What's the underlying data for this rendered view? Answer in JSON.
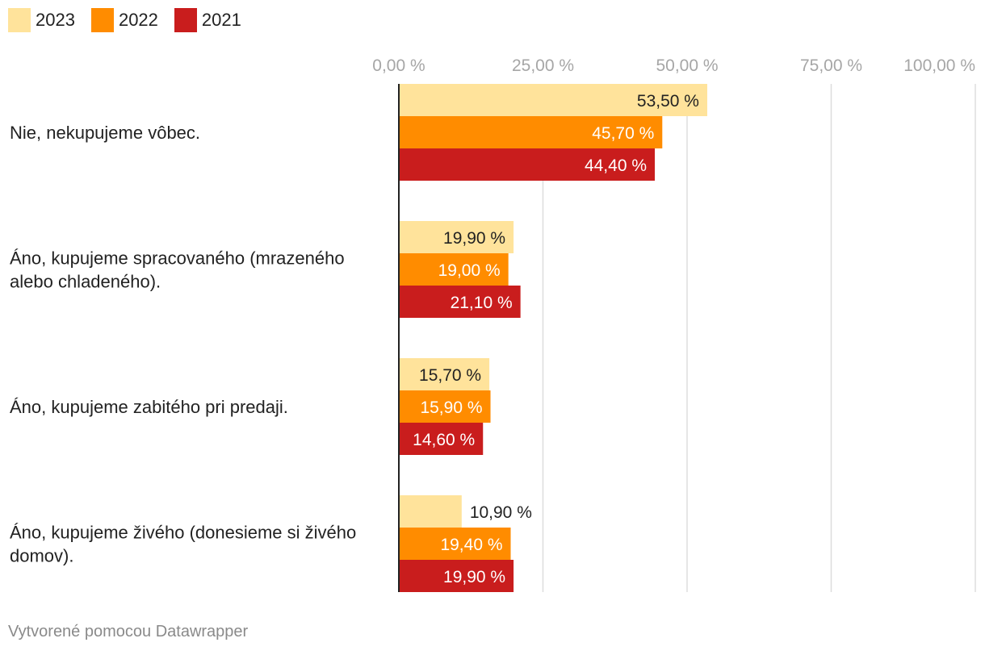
{
  "chart_data": {
    "type": "bar",
    "orientation": "horizontal",
    "categories": [
      [
        "Nie, nekupujeme vôbec."
      ],
      [
        "Áno, kupujeme spracovaného (mrazeného",
        "alebo chladeného)."
      ],
      [
        "Áno, kupujeme zabitého pri predaji."
      ],
      [
        "Áno, kupujeme živého (donesieme si živého",
        "domov)."
      ]
    ],
    "series": [
      {
        "name": "2023",
        "color": "#ffe39b",
        "label_color": "#222222",
        "values": [
          53.5,
          19.9,
          15.7,
          10.9
        ],
        "labels": [
          "53,50 %",
          "19,90 %",
          "15,70 %",
          "10,90 %"
        ]
      },
      {
        "name": "2022",
        "color": "#ff8c00",
        "label_color": "#ffffff",
        "values": [
          45.7,
          19.0,
          15.9,
          19.4
        ],
        "labels": [
          "45,70 %",
          "19,00 %",
          "15,90 %",
          "19,40 %"
        ]
      },
      {
        "name": "2021",
        "color": "#c91d1d",
        "label_color": "#ffffff",
        "values": [
          44.4,
          21.1,
          14.6,
          19.9
        ],
        "labels": [
          "44,40 %",
          "21,10 %",
          "14,60 %",
          "19,90 %"
        ]
      }
    ],
    "xlim": [
      0,
      100
    ],
    "xticks": [
      0,
      25,
      50,
      75,
      100
    ],
    "xtick_labels": [
      "0,00 %",
      "25,00 %",
      "50,00 %",
      "75,00 %",
      "100,00 %"
    ],
    "grid": true,
    "legend_position": "top-left"
  },
  "footer": {
    "credit": "Vytvorené pomocou Datawrapper"
  }
}
